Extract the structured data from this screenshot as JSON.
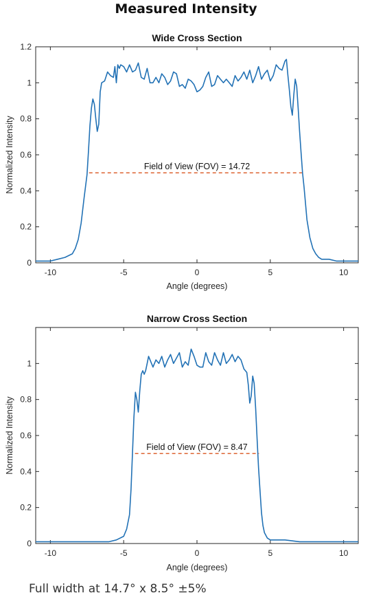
{
  "title": "Measured Intensity",
  "footer": "Full width at 14.7° x 8.5° ±5%",
  "colors": {
    "line": "#2171b5",
    "threshold": "#d9541e",
    "axis": "#262626"
  },
  "chart_data": [
    {
      "type": "line",
      "title": "Wide Cross Section",
      "xlabel": "Angle (degrees)",
      "ylabel": "Normalized Intensity",
      "xlim": [
        -11,
        11
      ],
      "ylim": [
        0,
        1.2
      ],
      "xticks": [
        -10,
        -5,
        0,
        5,
        10
      ],
      "yticks": [
        0,
        0.2,
        0.4,
        0.6,
        0.8,
        1,
        1.2
      ],
      "ytick_labels": [
        "0",
        "0.2",
        "0.4",
        "0.6",
        "0.8",
        "1",
        "1.2"
      ],
      "grid": false,
      "annotation": "Field of View (FOV) = 14.72",
      "threshold": {
        "y": 0.5,
        "x": [
          -7.36,
          7.36
        ]
      },
      "series": [
        {
          "x": [
            -11,
            -10.5,
            -10,
            -9.5,
            -9,
            -8.5,
            -8.3,
            -8.1,
            -7.9,
            -7.7,
            -7.5,
            -7.4,
            -7.3,
            -7.2,
            -7.1,
            -7.0,
            -6.9,
            -6.8,
            -6.7,
            -6.6,
            -6.5,
            -6.3,
            -6.1,
            -5.9,
            -5.7,
            -5.6,
            -5.5,
            -5.4,
            -5.3,
            -5.2,
            -5.0,
            -4.8,
            -4.6,
            -4.4,
            -4.2,
            -4.0,
            -3.8,
            -3.6,
            -3.4,
            -3.2,
            -3.0,
            -2.8,
            -2.6,
            -2.4,
            -2.2,
            -2.0,
            -1.8,
            -1.6,
            -1.4,
            -1.2,
            -1.0,
            -0.8,
            -0.6,
            -0.4,
            -0.2,
            0.0,
            0.2,
            0.4,
            0.6,
            0.8,
            1.0,
            1.2,
            1.4,
            1.6,
            1.8,
            2.0,
            2.2,
            2.4,
            2.6,
            2.8,
            3.0,
            3.2,
            3.4,
            3.6,
            3.8,
            4.0,
            4.2,
            4.4,
            4.6,
            4.8,
            5.0,
            5.2,
            5.4,
            5.6,
            5.8,
            6.0,
            6.1,
            6.2,
            6.3,
            6.4,
            6.5,
            6.6,
            6.7,
            6.8,
            6.9,
            7.0,
            7.1,
            7.2,
            7.3,
            7.4,
            7.5,
            7.7,
            7.9,
            8.1,
            8.3,
            8.5,
            9.0,
            9.5,
            10.0,
            10.5,
            11.0
          ],
          "y": [
            0.01,
            0.01,
            0.01,
            0.02,
            0.03,
            0.05,
            0.08,
            0.13,
            0.22,
            0.36,
            0.49,
            0.62,
            0.76,
            0.86,
            0.91,
            0.88,
            0.8,
            0.73,
            0.77,
            0.95,
            1.0,
            1.01,
            1.06,
            1.04,
            1.03,
            1.09,
            1.0,
            1.1,
            1.08,
            1.1,
            1.09,
            1.06,
            1.1,
            1.06,
            1.07,
            1.11,
            1.03,
            1.02,
            1.08,
            1.0,
            1.0,
            1.03,
            1.0,
            1.05,
            1.03,
            0.99,
            1.01,
            1.06,
            1.05,
            0.98,
            0.99,
            0.97,
            1.02,
            1.01,
            0.99,
            0.95,
            0.96,
            0.98,
            1.03,
            1.06,
            0.98,
            0.99,
            1.04,
            1.02,
            1.0,
            1.02,
            1.0,
            0.98,
            1.04,
            1.01,
            1.03,
            1.06,
            1.02,
            1.07,
            1.0,
            1.04,
            1.09,
            1.02,
            1.05,
            1.07,
            1.01,
            1.04,
            1.1,
            1.08,
            1.07,
            1.12,
            1.13,
            1.04,
            0.96,
            0.87,
            0.82,
            0.93,
            1.02,
            0.98,
            0.86,
            0.73,
            0.61,
            0.5,
            0.42,
            0.33,
            0.24,
            0.14,
            0.08,
            0.05,
            0.03,
            0.02,
            0.02,
            0.01,
            0.01,
            0.01,
            0.01
          ]
        }
      ]
    },
    {
      "type": "line",
      "title": "Narrow Cross Section",
      "xlabel": "Angle (degrees)",
      "ylabel": "Normalized Intensity",
      "xlim": [
        -11,
        11
      ],
      "ylim": [
        0,
        1.2
      ],
      "xticks": [
        -10,
        -5,
        0,
        5,
        10
      ],
      "yticks": [
        0,
        0.2,
        0.4,
        0.6,
        0.8,
        1
      ],
      "ytick_labels": [
        "0",
        "0.2",
        "0.4",
        "0.6",
        "0.8",
        "1"
      ],
      "grid": false,
      "annotation": "Field of View (FOV) = 8.47",
      "threshold": {
        "y": 0.5,
        "x": [
          -4.23,
          4.23
        ]
      },
      "series": [
        {
          "x": [
            -11,
            -10.5,
            -10,
            -9,
            -8,
            -7,
            -6,
            -5.5,
            -5.0,
            -4.8,
            -4.6,
            -4.5,
            -4.4,
            -4.3,
            -4.2,
            -4.1,
            -4.0,
            -3.9,
            -3.8,
            -3.7,
            -3.6,
            -3.5,
            -3.4,
            -3.3,
            -3.2,
            -3.0,
            -2.8,
            -2.6,
            -2.4,
            -2.2,
            -2.0,
            -1.8,
            -1.6,
            -1.4,
            -1.2,
            -1.0,
            -0.8,
            -0.6,
            -0.4,
            -0.2,
            0.0,
            0.2,
            0.4,
            0.6,
            0.8,
            1.0,
            1.2,
            1.4,
            1.6,
            1.8,
            2.0,
            2.2,
            2.4,
            2.6,
            2.8,
            3.0,
            3.2,
            3.4,
            3.5,
            3.6,
            3.7,
            3.8,
            3.9,
            4.0,
            4.1,
            4.2,
            4.3,
            4.4,
            4.5,
            4.6,
            4.8,
            5.0,
            5.5,
            6,
            7,
            8,
            9,
            10,
            10.5,
            11
          ],
          "y": [
            0.01,
            0.01,
            0.01,
            0.01,
            0.01,
            0.01,
            0.01,
            0.02,
            0.04,
            0.08,
            0.16,
            0.3,
            0.5,
            0.7,
            0.84,
            0.8,
            0.73,
            0.85,
            0.94,
            0.96,
            0.94,
            0.96,
            1.0,
            1.04,
            1.02,
            0.98,
            1.02,
            1.0,
            1.04,
            0.98,
            1.02,
            1.05,
            1.0,
            1.03,
            1.06,
            0.98,
            1.01,
            0.99,
            1.08,
            1.04,
            0.99,
            0.98,
            0.98,
            1.06,
            1.01,
            0.99,
            1.06,
            1.02,
            0.99,
            1.06,
            1.0,
            1.02,
            1.05,
            1.01,
            1.04,
            1.02,
            0.97,
            0.95,
            0.88,
            0.78,
            0.82,
            0.93,
            0.89,
            0.75,
            0.58,
            0.42,
            0.29,
            0.17,
            0.1,
            0.06,
            0.03,
            0.02,
            0.02,
            0.02,
            0.01,
            0.01,
            0.01,
            0.01,
            0.01,
            0.01
          ]
        }
      ]
    }
  ]
}
